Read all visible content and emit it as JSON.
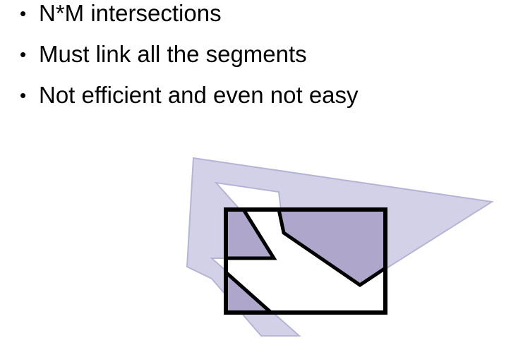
{
  "bullets": [
    {
      "bullet": "•",
      "text": "N*M intersections"
    },
    {
      "bullet": "•",
      "text": "Must link all the segments"
    },
    {
      "bullet": "•",
      "text": "Not efficient and even not easy"
    }
  ],
  "diagram": {
    "colors": {
      "subject_fill": "#d2d1e7",
      "subject_stroke": "#b6b4d6",
      "clipped_fill": "#aea6cb",
      "clip_stroke": "#000000"
    }
  }
}
